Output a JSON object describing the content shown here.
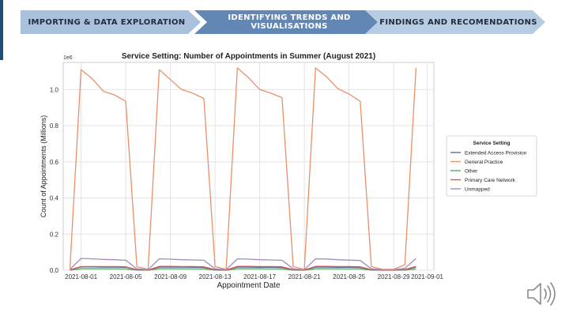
{
  "steps": [
    {
      "label": "IMPORTING & DATA EXPLORATION"
    },
    {
      "label": "IDENTIFYING TRENDS AND VISUALISATIONS"
    },
    {
      "label": "FINDINGS AND RECOMENDATIONS"
    }
  ],
  "icons": {
    "speaker": "speaker-icon"
  },
  "chart_data": {
    "type": "line",
    "title": "Service Setting: Number of Appointments in Summer (August 2021)",
    "xlabel": "Appointment Date",
    "ylabel": "Count of Appointments (Millions)",
    "y_offset_label": "1e6",
    "ylim": [
      0,
      1.15
    ],
    "yticks": [
      "0.0",
      "0.2",
      "0.4",
      "0.6",
      "0.8",
      "1.0"
    ],
    "xticks": [
      "2021-08-01",
      "2021-08-05",
      "2021-08-09",
      "2021-08-13",
      "2021-08-17",
      "2021-08-21",
      "2021-08-25",
      "2021-08-29",
      "2021-09-01"
    ],
    "grid": true,
    "legend": {
      "title": "Service Setting",
      "placement": "right"
    },
    "x": [
      "2021-07-31",
      "2021-08-01",
      "2021-08-02",
      "2021-08-03",
      "2021-08-04",
      "2021-08-05",
      "2021-08-06",
      "2021-08-07",
      "2021-08-08",
      "2021-08-09",
      "2021-08-10",
      "2021-08-11",
      "2021-08-12",
      "2021-08-13",
      "2021-08-14",
      "2021-08-15",
      "2021-08-16",
      "2021-08-17",
      "2021-08-18",
      "2021-08-19",
      "2021-08-20",
      "2021-08-21",
      "2021-08-22",
      "2021-08-23",
      "2021-08-24",
      "2021-08-25",
      "2021-08-26",
      "2021-08-27",
      "2021-08-28",
      "2021-08-29",
      "2021-08-30",
      "2021-08-31"
    ],
    "series": [
      {
        "name": "Extended Access Provision",
        "color": "#5d6c9e",
        "values": [
          0.002,
          0.018,
          0.018,
          0.017,
          0.017,
          0.016,
          0.002,
          0.001,
          0.017,
          0.017,
          0.017,
          0.016,
          0.015,
          0.002,
          0.001,
          0.017,
          0.017,
          0.016,
          0.016,
          0.015,
          0.002,
          0.001,
          0.017,
          0.017,
          0.016,
          0.016,
          0.015,
          0.002,
          0.001,
          0.001,
          0.003,
          0.016
        ]
      },
      {
        "name": "General Practice",
        "color": "#e8916a",
        "values": [
          0.01,
          1.11,
          1.06,
          0.99,
          0.97,
          0.935,
          0.02,
          0.005,
          1.11,
          1.055,
          1.0,
          0.98,
          0.95,
          0.02,
          0.005,
          1.12,
          1.065,
          1.0,
          0.98,
          0.955,
          0.02,
          0.005,
          1.12,
          1.07,
          1.005,
          0.975,
          0.935,
          0.02,
          0.005,
          0.005,
          0.03,
          1.12
        ]
      },
      {
        "name": "Other",
        "color": "#5aa469",
        "values": [
          0.001,
          0.008,
          0.008,
          0.008,
          0.008,
          0.007,
          0.001,
          0.0,
          0.008,
          0.008,
          0.008,
          0.007,
          0.007,
          0.001,
          0.0,
          0.008,
          0.008,
          0.008,
          0.007,
          0.007,
          0.001,
          0.0,
          0.008,
          0.008,
          0.008,
          0.007,
          0.007,
          0.001,
          0.0,
          0.0,
          0.001,
          0.007
        ]
      },
      {
        "name": "Primary Care Network",
        "color": "#d9534f",
        "values": [
          0.002,
          0.02,
          0.02,
          0.02,
          0.02,
          0.019,
          0.003,
          0.001,
          0.021,
          0.021,
          0.02,
          0.02,
          0.019,
          0.003,
          0.001,
          0.021,
          0.021,
          0.02,
          0.02,
          0.019,
          0.003,
          0.001,
          0.021,
          0.021,
          0.02,
          0.02,
          0.019,
          0.003,
          0.001,
          0.001,
          0.004,
          0.021
        ]
      },
      {
        "name": "Unmapped",
        "color": "#a08bc0",
        "values": [
          0.005,
          0.065,
          0.063,
          0.06,
          0.058,
          0.055,
          0.008,
          0.003,
          0.063,
          0.061,
          0.058,
          0.057,
          0.055,
          0.008,
          0.003,
          0.063,
          0.061,
          0.058,
          0.057,
          0.055,
          0.008,
          0.003,
          0.063,
          0.062,
          0.058,
          0.056,
          0.054,
          0.008,
          0.003,
          0.003,
          0.01,
          0.065
        ]
      }
    ]
  }
}
